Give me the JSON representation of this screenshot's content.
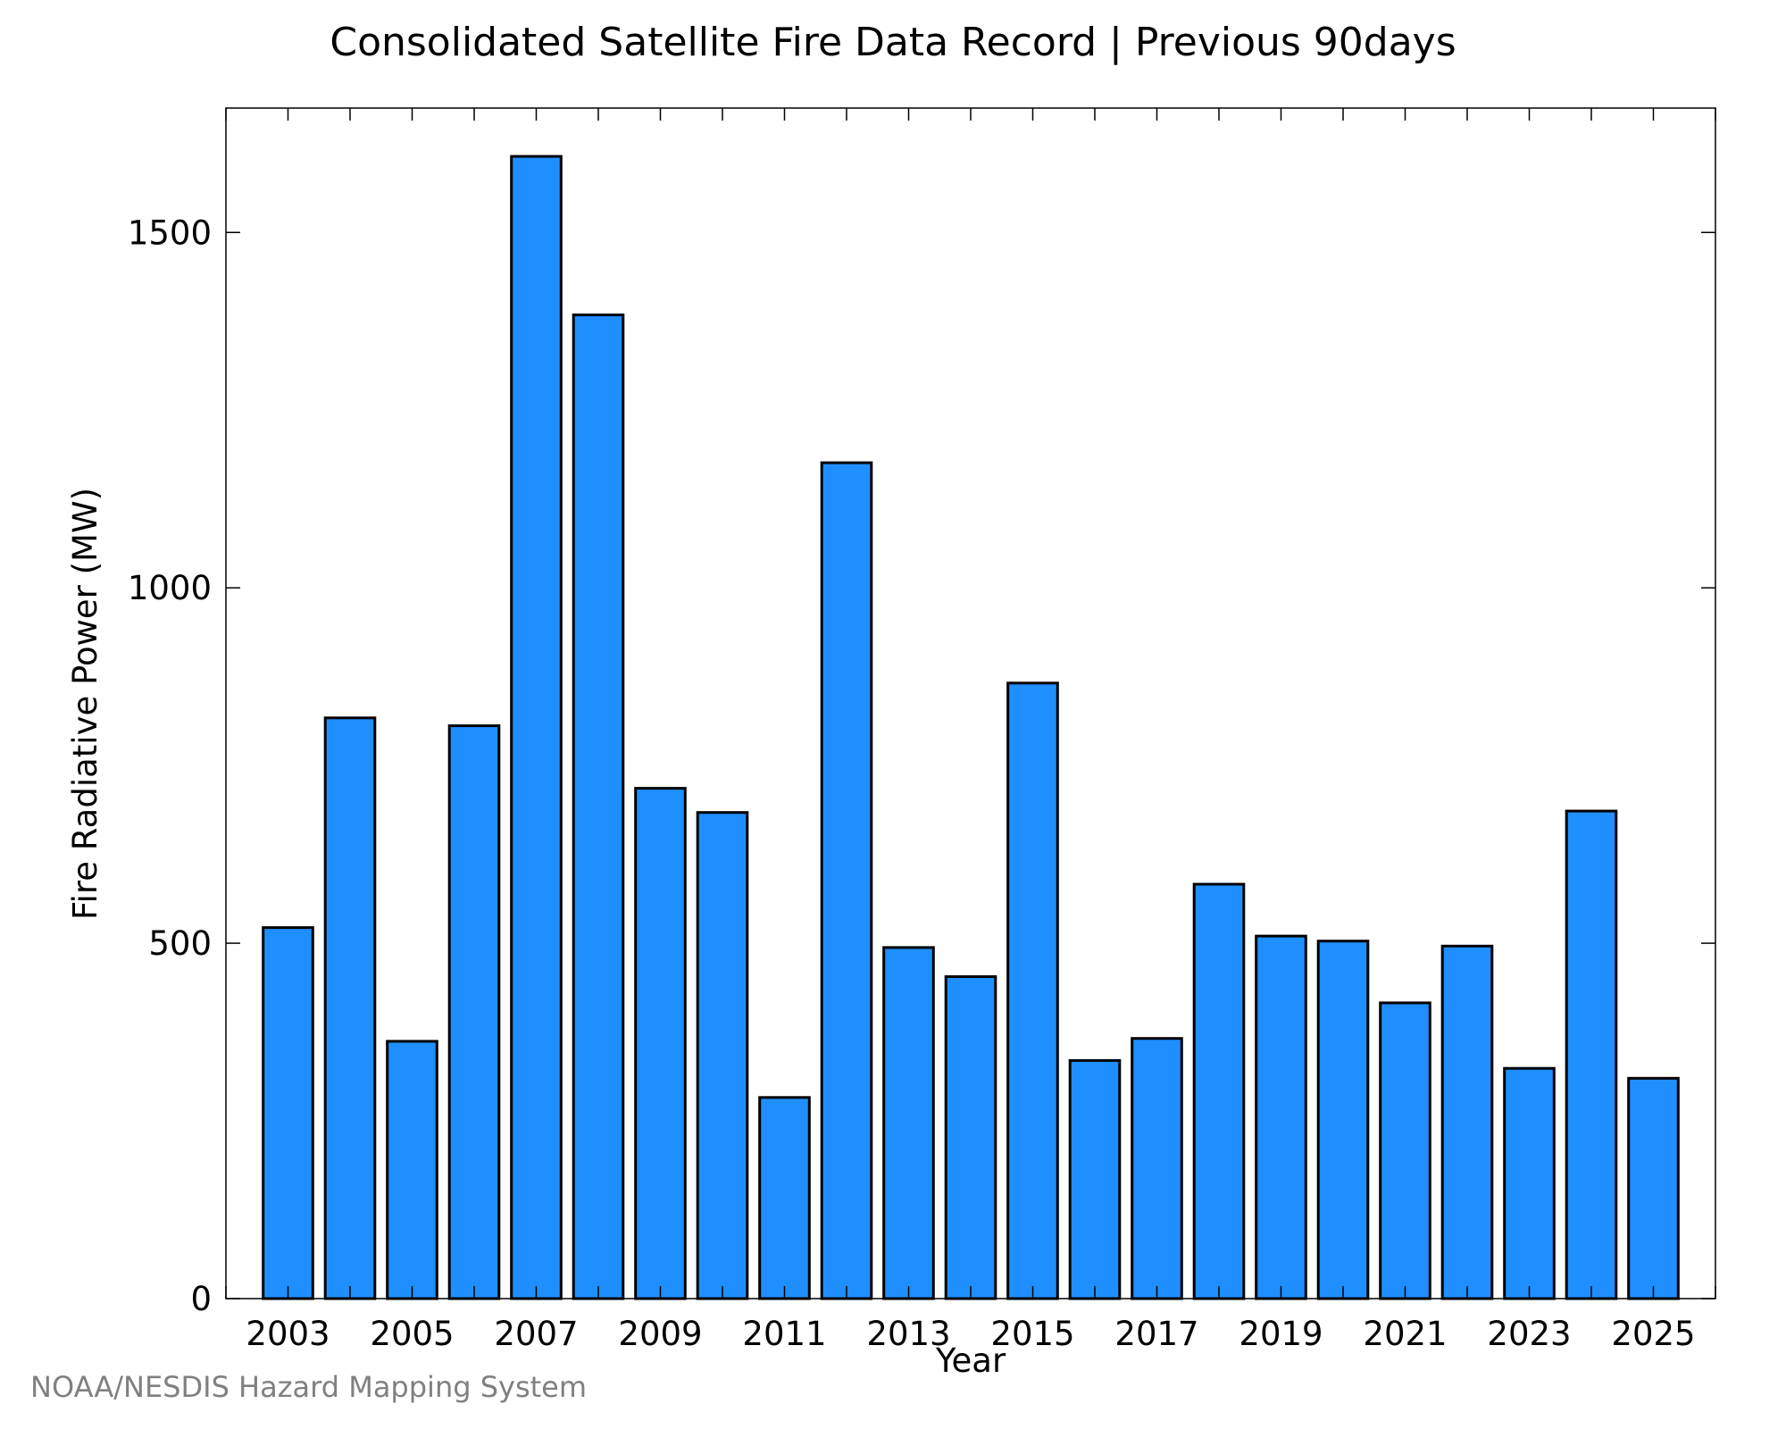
{
  "chart_data": {
    "type": "bar",
    "title": "Consolidated Satellite Fire Data Record | Previous 90days",
    "xlabel": "Year",
    "ylabel": "Fire Radiative Power (MW)",
    "categories": [
      2003,
      2004,
      2005,
      2006,
      2007,
      2008,
      2009,
      2010,
      2011,
      2012,
      2013,
      2014,
      2015,
      2016,
      2017,
      2018,
      2019,
      2020,
      2021,
      2022,
      2023,
      2024,
      2025
    ],
    "values": [
      522,
      817,
      362,
      806,
      1607,
      1384,
      718,
      684,
      283,
      1176,
      494,
      453,
      866,
      335,
      366,
      583,
      510,
      503,
      416,
      496,
      324,
      686,
      310
    ],
    "x_tick_labels": [
      "2003",
      "2005",
      "2007",
      "2009",
      "2011",
      "2013",
      "2015",
      "2017",
      "2019",
      "2021",
      "2023",
      "2025"
    ],
    "y_ticks": [
      0,
      500,
      1000,
      1500
    ],
    "ylim": [
      0,
      1675
    ],
    "xlim": [
      2002,
      2026
    ],
    "grid": false,
    "bar_color": "#1f8fff",
    "bar_edge_color": "#000000"
  },
  "credit": "NOAA/NESDIS Hazard Mapping System"
}
